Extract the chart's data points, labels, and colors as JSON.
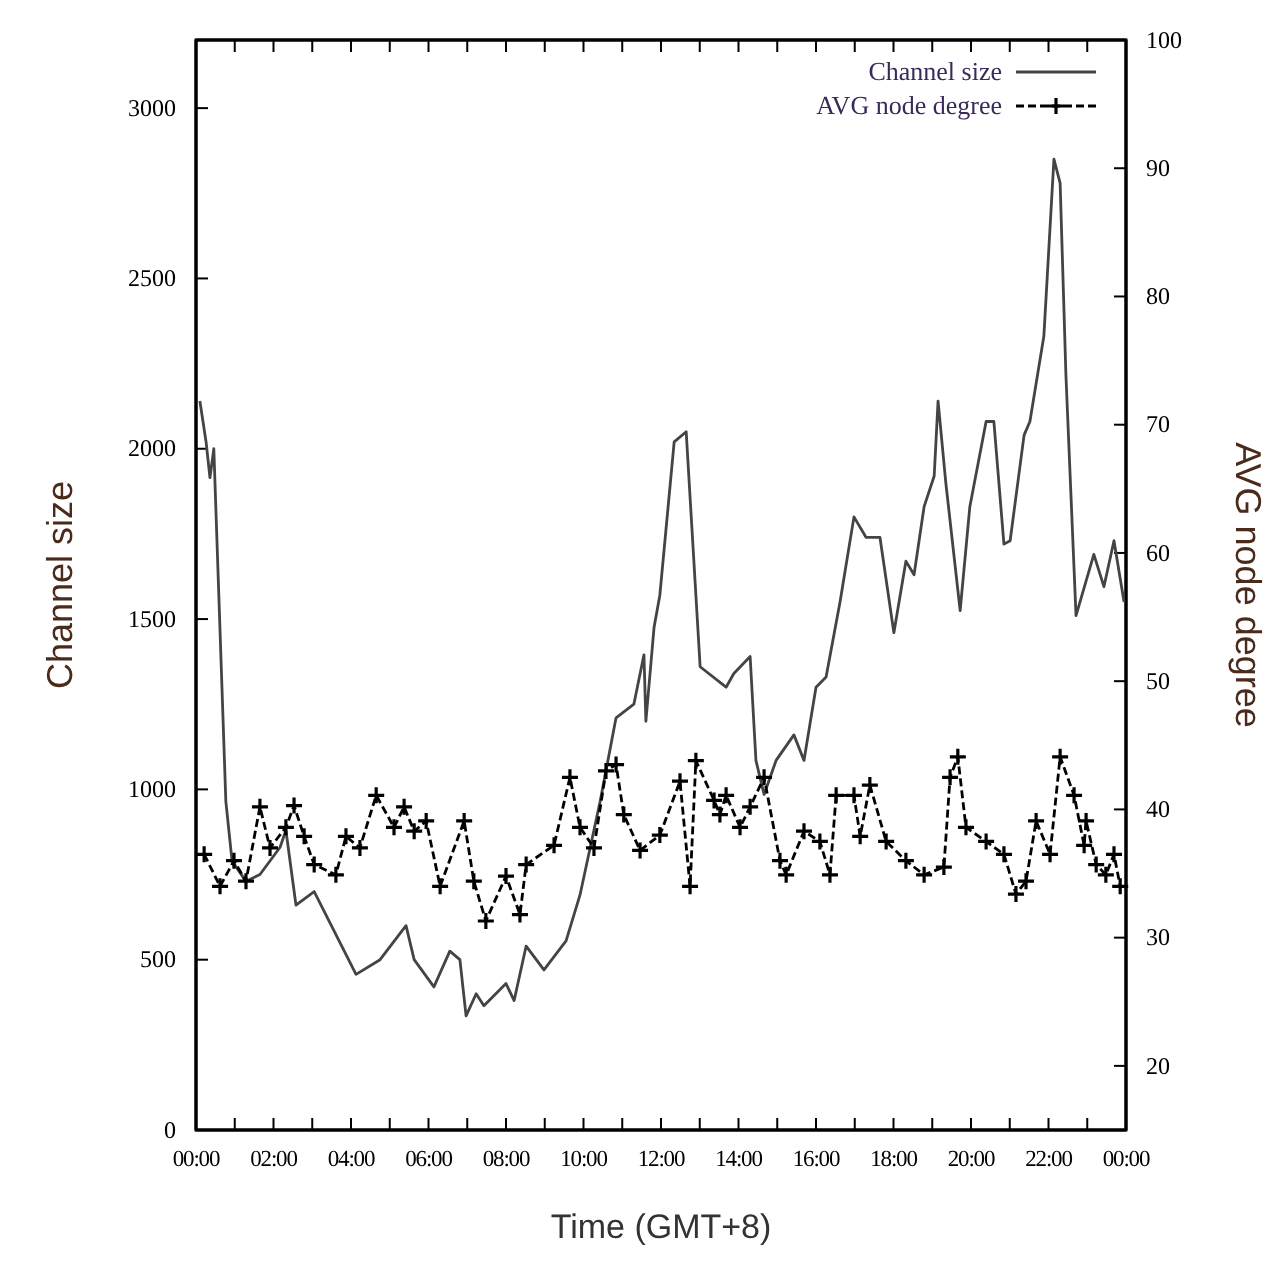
{
  "chart_data": {
    "type": "line",
    "xlabel": "Time (GMT+8)",
    "ylabel": "Channel size",
    "y2label": "AVG node degree",
    "xlim": [
      0,
      24
    ],
    "xticks": [
      {
        "value": 0,
        "label": "00:00"
      },
      {
        "value": 1,
        "label": null
      },
      {
        "value": 2,
        "label": "02:00"
      },
      {
        "value": 3,
        "label": null
      },
      {
        "value": 4,
        "label": "04:00"
      },
      {
        "value": 5,
        "label": null
      },
      {
        "value": 6,
        "label": "06:00"
      },
      {
        "value": 7,
        "label": null
      },
      {
        "value": 8,
        "label": "08:00"
      },
      {
        "value": 9,
        "label": null
      },
      {
        "value": 10,
        "label": "10:00"
      },
      {
        "value": 11,
        "label": null
      },
      {
        "value": 12,
        "label": "12:00"
      },
      {
        "value": 13,
        "label": null
      },
      {
        "value": 14,
        "label": "14:00"
      },
      {
        "value": 15,
        "label": null
      },
      {
        "value": 16,
        "label": "16:00"
      },
      {
        "value": 17,
        "label": null
      },
      {
        "value": 18,
        "label": "18:00"
      },
      {
        "value": 19,
        "label": null
      },
      {
        "value": 20,
        "label": "20:00"
      },
      {
        "value": 21,
        "label": null
      },
      {
        "value": 22,
        "label": "22:00"
      },
      {
        "value": 23,
        "label": null
      },
      {
        "value": 24,
        "label": "00:00"
      }
    ],
    "ylim": [
      0,
      3200
    ],
    "yticks": [
      0,
      500,
      1000,
      1500,
      2000,
      2500,
      3000
    ],
    "y2lim": [
      15,
      100
    ],
    "y2ticks": [
      20,
      30,
      40,
      50,
      60,
      70,
      80,
      90,
      100
    ],
    "legend": "top right",
    "series": [
      {
        "name": "Channel size",
        "color": "#444444",
        "line_style": "solid",
        "marker": "none",
        "x": [
          0.1,
          0.26,
          0.36,
          0.46,
          0.77,
          0.93,
          1.29,
          1.65,
          2.17,
          2.32,
          2.58,
          3.05,
          4.13,
          4.75,
          5.42,
          5.63,
          6.14,
          6.55,
          6.81,
          6.97,
          7.23,
          7.43,
          8.0,
          8.21,
          8.52,
          8.98,
          9.55,
          9.91,
          10.43,
          10.84,
          11.3,
          11.56,
          11.61,
          11.82,
          11.97,
          12.34,
          12.65,
          13.01,
          13.68,
          13.88,
          14.3,
          14.45,
          14.66,
          14.97,
          15.43,
          15.69,
          16.0,
          16.26,
          16.62,
          16.98,
          17.29,
          17.65,
          18.01,
          18.32,
          18.53,
          18.79,
          19.05,
          19.15,
          19.35,
          19.72,
          19.97,
          20.39,
          20.59,
          20.85,
          21.01,
          21.37,
          21.52,
          21.88,
          22.14,
          22.3,
          22.45,
          22.71,
          23.17,
          23.43,
          23.69,
          23.95
        ],
        "values": [
          2140,
          2020,
          1915,
          2000,
          965,
          790,
          730,
          750,
          830,
          880,
          660,
          700,
          457,
          500,
          600,
          500,
          420,
          525,
          500,
          335,
          400,
          365,
          430,
          380,
          540,
          470,
          555,
          690,
          965,
          1210,
          1250,
          1395,
          1200,
          1475,
          1570,
          2020,
          2050,
          1360,
          1300,
          1340,
          1390,
          1085,
          985,
          1085,
          1160,
          1085,
          1300,
          1330,
          1550,
          1800,
          1740,
          1740,
          1460,
          1670,
          1630,
          1830,
          1920,
          2140,
          1900,
          1525,
          1830,
          2080,
          2080,
          1720,
          1730,
          2040,
          2080,
          2330,
          2850,
          2780,
          2215,
          1510,
          1690,
          1595,
          1730,
          1550
        ]
      },
      {
        "name": "AVG node degree",
        "color": "#000000",
        "axis": "y2",
        "line_style": "dashed",
        "marker": "cross",
        "x": [
          0.21,
          0.62,
          0.98,
          1.29,
          1.65,
          1.91,
          2.32,
          2.53,
          2.79,
          3.05,
          3.61,
          3.87,
          4.23,
          4.65,
          5.11,
          5.37,
          5.63,
          5.94,
          6.3,
          6.92,
          7.17,
          7.48,
          8.0,
          8.36,
          8.52,
          9.24,
          9.65,
          9.91,
          10.27,
          10.58,
          10.84,
          11.04,
          11.46,
          11.97,
          12.49,
          12.75,
          12.9,
          13.37,
          13.52,
          13.68,
          14.04,
          14.3,
          14.66,
          15.07,
          15.23,
          15.69,
          16.1,
          16.36,
          16.52,
          16.98,
          17.14,
          17.39,
          17.81,
          18.32,
          18.79,
          19.3,
          19.46,
          19.66,
          19.87,
          20.39,
          20.85,
          21.16,
          21.42,
          21.68,
          22.04,
          22.3,
          22.66,
          22.92,
          22.97,
          23.23,
          23.48,
          23.69,
          23.85
        ],
        "values": [
          36.5,
          34,
          36,
          34.4,
          40.2,
          37,
          38.6,
          40.3,
          37.9,
          35.7,
          34.9,
          37.9,
          37,
          41.1,
          38.6,
          40.2,
          38.3,
          39.1,
          34,
          39.1,
          34.4,
          31.3,
          34.8,
          31.8,
          35.7,
          37.2,
          42.5,
          38.6,
          37,
          43,
          43.5,
          39.6,
          36.8,
          38,
          42.2,
          34,
          43.8,
          40.7,
          39.6,
          41.1,
          38.6,
          40.2,
          42.5,
          36,
          34.9,
          38.3,
          37.5,
          34.9,
          41.1,
          41.1,
          37.9,
          41.9,
          37.5,
          36,
          34.9,
          35.5,
          42.5,
          44.1,
          38.6,
          37.5,
          36.5,
          33.4,
          34.4,
          39.1,
          36.5,
          44.1,
          41.1,
          37.2,
          39.1,
          35.7,
          34.9,
          36.5,
          34
        ]
      }
    ]
  }
}
